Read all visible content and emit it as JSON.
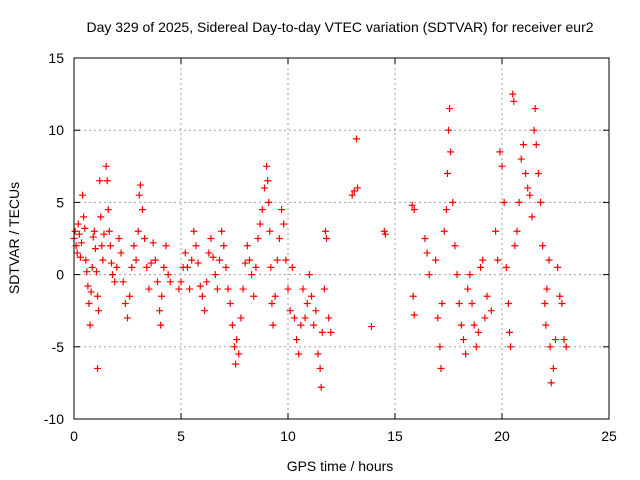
{
  "chart_data": {
    "type": "scatter",
    "title": "Day 329 of 2025, Sidereal Day-to-day VTEC variation (SDTVAR) for receiver eur2",
    "xlabel": "GPS time / hours",
    "ylabel": "SDTVAR / TECUs",
    "xlim": [
      0,
      25
    ],
    "ylim": [
      -10,
      15
    ],
    "xticks": [
      0,
      5,
      10,
      15,
      20,
      25
    ],
    "yticks": [
      -10,
      -5,
      0,
      5,
      10,
      15
    ],
    "xtick_labels": [
      "0",
      "5",
      "10",
      "15",
      "20",
      "25"
    ],
    "ytick_labels": [
      "-10",
      "-5",
      "0",
      "5",
      "10",
      "15"
    ],
    "grid": true,
    "marker": "+",
    "marker_color": "#ff0000",
    "series": [
      {
        "name": "SDTVAR",
        "points": [
          [
            0.0,
            2.5
          ],
          [
            0.05,
            3.0
          ],
          [
            0.1,
            2.0
          ],
          [
            0.15,
            1.5
          ],
          [
            0.2,
            3.5
          ],
          [
            0.25,
            2.8
          ],
          [
            0.3,
            1.2
          ],
          [
            0.35,
            2.2
          ],
          [
            0.4,
            5.5
          ],
          [
            0.45,
            4.0
          ],
          [
            0.5,
            3.2
          ],
          [
            0.55,
            1.0
          ],
          [
            0.6,
            0.2
          ],
          [
            0.65,
            -0.8
          ],
          [
            0.7,
            -2.0
          ],
          [
            0.75,
            -3.5
          ],
          [
            0.8,
            -1.2
          ],
          [
            0.85,
            0.5
          ],
          [
            0.9,
            2.6
          ],
          [
            0.95,
            3.0
          ],
          [
            1.0,
            1.8
          ],
          [
            1.05,
            0.2
          ],
          [
            1.1,
            -1.5
          ],
          [
            1.1,
            -6.5
          ],
          [
            1.15,
            -2.5
          ],
          [
            1.2,
            6.5
          ],
          [
            1.25,
            4.0
          ],
          [
            1.3,
            2.0
          ],
          [
            1.35,
            1.0
          ],
          [
            1.4,
            2.8
          ],
          [
            1.5,
            7.5
          ],
          [
            1.55,
            6.5
          ],
          [
            1.6,
            4.5
          ],
          [
            1.65,
            3.0
          ],
          [
            1.7,
            2.0
          ],
          [
            1.75,
            0.8
          ],
          [
            1.8,
            0.0
          ],
          [
            1.9,
            -0.5
          ],
          [
            2.0,
            0.5
          ],
          [
            2.1,
            2.5
          ],
          [
            2.2,
            1.5
          ],
          [
            2.3,
            -0.5
          ],
          [
            2.4,
            -2.0
          ],
          [
            2.5,
            -3.0
          ],
          [
            2.6,
            -1.5
          ],
          [
            2.7,
            0.5
          ],
          [
            2.8,
            2.0
          ],
          [
            2.9,
            1.0
          ],
          [
            3.0,
            3.0
          ],
          [
            3.05,
            5.5
          ],
          [
            3.1,
            6.2
          ],
          [
            3.2,
            4.5
          ],
          [
            3.3,
            2.5
          ],
          [
            3.4,
            0.5
          ],
          [
            3.5,
            -1.0
          ],
          [
            3.6,
            0.8
          ],
          [
            3.7,
            2.2
          ],
          [
            3.8,
            1.0
          ],
          [
            3.9,
            -0.5
          ],
          [
            4.0,
            -2.5
          ],
          [
            4.05,
            -3.5
          ],
          [
            4.1,
            -1.5
          ],
          [
            4.2,
            0.5
          ],
          [
            4.3,
            2.0
          ],
          [
            4.4,
            0.0
          ],
          [
            4.5,
            -0.5
          ],
          [
            4.9,
            -1.0
          ],
          [
            5.0,
            -0.5
          ],
          [
            5.1,
            0.5
          ],
          [
            5.2,
            1.5
          ],
          [
            5.3,
            0.5
          ],
          [
            5.4,
            -1.0
          ],
          [
            5.5,
            1.0
          ],
          [
            5.6,
            3.0
          ],
          [
            5.7,
            2.0
          ],
          [
            5.8,
            0.8
          ],
          [
            5.9,
            -0.8
          ],
          [
            6.0,
            -1.5
          ],
          [
            6.1,
            -2.5
          ],
          [
            6.2,
            -0.5
          ],
          [
            6.3,
            1.5
          ],
          [
            6.4,
            2.5
          ],
          [
            6.5,
            1.2
          ],
          [
            6.6,
            0.0
          ],
          [
            6.7,
            -1.0
          ],
          [
            6.8,
            1.0
          ],
          [
            6.9,
            3.0
          ],
          [
            7.0,
            2.0
          ],
          [
            7.1,
            0.5
          ],
          [
            7.2,
            -1.0
          ],
          [
            7.3,
            -2.0
          ],
          [
            7.4,
            -3.5
          ],
          [
            7.5,
            -5.0
          ],
          [
            7.55,
            -6.2
          ],
          [
            7.6,
            -4.5
          ],
          [
            7.7,
            -5.5
          ],
          [
            7.8,
            -3.0
          ],
          [
            7.9,
            -1.0
          ],
          [
            8.0,
            0.8
          ],
          [
            8.1,
            2.0
          ],
          [
            8.2,
            1.0
          ],
          [
            8.3,
            0.0
          ],
          [
            8.4,
            -1.5
          ],
          [
            8.5,
            0.5
          ],
          [
            8.6,
            2.5
          ],
          [
            8.7,
            3.5
          ],
          [
            8.8,
            4.5
          ],
          [
            8.9,
            6.0
          ],
          [
            9.0,
            7.5
          ],
          [
            9.05,
            6.5
          ],
          [
            9.1,
            5.0
          ],
          [
            9.15,
            3.0
          ],
          [
            9.2,
            0.5
          ],
          [
            9.25,
            -2.0
          ],
          [
            9.3,
            -3.5
          ],
          [
            9.4,
            -1.5
          ],
          [
            9.5,
            1.0
          ],
          [
            9.6,
            2.5
          ],
          [
            9.7,
            4.5
          ],
          [
            9.8,
            3.5
          ],
          [
            9.9,
            1.0
          ],
          [
            10.0,
            -1.0
          ],
          [
            10.1,
            -2.5
          ],
          [
            10.2,
            0.5
          ],
          [
            10.3,
            -3.0
          ],
          [
            10.4,
            -4.5
          ],
          [
            10.5,
            -5.5
          ],
          [
            10.6,
            -3.5
          ],
          [
            10.7,
            -1.0
          ],
          [
            10.8,
            -3.0
          ],
          [
            10.9,
            -2.0
          ],
          [
            11.0,
            0.0
          ],
          [
            11.1,
            -1.5
          ],
          [
            11.2,
            -3.5
          ],
          [
            11.3,
            -2.5
          ],
          [
            11.4,
            -5.5
          ],
          [
            11.5,
            -6.5
          ],
          [
            11.55,
            -7.8
          ],
          [
            11.6,
            -4.0
          ],
          [
            11.7,
            -1.0
          ],
          [
            11.75,
            3.0
          ],
          [
            11.8,
            2.5
          ],
          [
            11.9,
            -3.0
          ],
          [
            12.0,
            -4.0
          ],
          [
            13.0,
            5.5
          ],
          [
            13.1,
            5.8
          ],
          [
            13.2,
            9.4
          ],
          [
            13.25,
            6.0
          ],
          [
            13.9,
            -3.6
          ],
          [
            14.5,
            3.0
          ],
          [
            14.55,
            2.8
          ],
          [
            15.8,
            4.8
          ],
          [
            15.9,
            4.5
          ],
          [
            15.85,
            -1.5
          ],
          [
            15.9,
            -2.8
          ],
          [
            16.4,
            2.5
          ],
          [
            16.5,
            1.5
          ],
          [
            16.6,
            0.0
          ],
          [
            16.9,
            1.0
          ],
          [
            17.0,
            -3.0
          ],
          [
            17.1,
            -5.0
          ],
          [
            17.15,
            -6.5
          ],
          [
            17.2,
            -2.0
          ],
          [
            17.3,
            3.0
          ],
          [
            17.4,
            4.5
          ],
          [
            17.45,
            7.0
          ],
          [
            17.5,
            10.0
          ],
          [
            17.55,
            11.5
          ],
          [
            17.6,
            8.5
          ],
          [
            17.7,
            5.0
          ],
          [
            17.8,
            2.0
          ],
          [
            17.9,
            0.0
          ],
          [
            18.0,
            -2.0
          ],
          [
            18.1,
            -3.5
          ],
          [
            18.2,
            -4.5
          ],
          [
            18.3,
            -5.5
          ],
          [
            18.4,
            -1.0
          ],
          [
            18.5,
            0.0
          ],
          [
            18.6,
            -2.0
          ],
          [
            18.7,
            -3.5
          ],
          [
            18.8,
            -5.0
          ],
          [
            18.9,
            -4.0
          ],
          [
            19.0,
            0.5
          ],
          [
            19.1,
            1.0
          ],
          [
            19.2,
            -3.0
          ],
          [
            19.3,
            -1.5
          ],
          [
            19.5,
            -2.5
          ],
          [
            19.7,
            3.0
          ],
          [
            19.8,
            1.0
          ],
          [
            19.9,
            8.5
          ],
          [
            20.0,
            7.5
          ],
          [
            20.1,
            5.0
          ],
          [
            20.2,
            0.5
          ],
          [
            20.3,
            -2.0
          ],
          [
            20.35,
            -4.0
          ],
          [
            20.4,
            -5.0
          ],
          [
            20.5,
            12.5
          ],
          [
            20.55,
            12.0
          ],
          [
            20.6,
            2.0
          ],
          [
            20.7,
            3.0
          ],
          [
            20.8,
            5.0
          ],
          [
            20.9,
            8.0
          ],
          [
            21.0,
            9.0
          ],
          [
            21.1,
            7.0
          ],
          [
            21.2,
            6.0
          ],
          [
            21.3,
            5.5
          ],
          [
            21.4,
            4.0
          ],
          [
            21.5,
            10.0
          ],
          [
            21.55,
            11.5
          ],
          [
            21.6,
            9.0
          ],
          [
            21.7,
            7.0
          ],
          [
            21.8,
            5.0
          ],
          [
            21.9,
            2.0
          ],
          [
            22.0,
            -2.0
          ],
          [
            22.05,
            -3.5
          ],
          [
            22.1,
            -1.0
          ],
          [
            22.2,
            1.0
          ],
          [
            22.25,
            -5.0
          ],
          [
            22.3,
            -7.5
          ],
          [
            22.4,
            -6.5
          ],
          [
            22.5,
            -4.5
          ],
          [
            22.6,
            0.5
          ],
          [
            22.7,
            -1.5
          ],
          [
            22.8,
            -2.0
          ],
          [
            22.9,
            -4.5
          ],
          [
            23.0,
            -5.0
          ]
        ]
      }
    ]
  }
}
